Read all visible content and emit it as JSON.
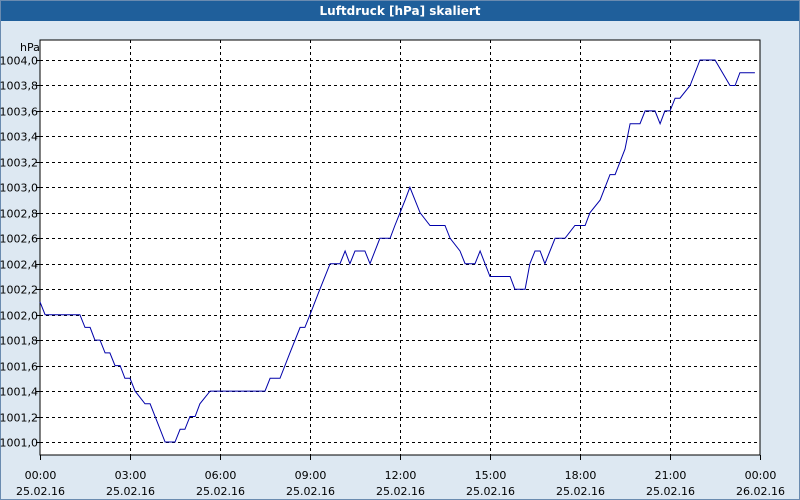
{
  "window": {
    "title": "Luftdruck [hPa] skaliert"
  },
  "chart_data": {
    "type": "line",
    "title": "Luftdruck [hPa] skaliert",
    "ylabel": "hPa",
    "xlabel": "",
    "ylim": [
      1000.9,
      1004.1
    ],
    "xlim": [
      0,
      24
    ],
    "grid": true,
    "x_ticks": [
      {
        "time": "00:00",
        "date": "25.02.16"
      },
      {
        "time": "03:00",
        "date": "25.02.16"
      },
      {
        "time": "06:00",
        "date": "25.02.16"
      },
      {
        "time": "09:00",
        "date": "25.02.16"
      },
      {
        "time": "12:00",
        "date": "25.02.16"
      },
      {
        "time": "15:00",
        "date": "25.02.16"
      },
      {
        "time": "18:00",
        "date": "25.02.16"
      },
      {
        "time": "21:00",
        "date": "25.02.16"
      },
      {
        "time": "00:00",
        "date": "26.02.16"
      }
    ],
    "y_ticks": [
      "1001,0",
      "1001,2",
      "1001,4",
      "1001,6",
      "1001,8",
      "1002,0",
      "1002,2",
      "1002,4",
      "1002,6",
      "1002,8",
      "1003,0",
      "1003,2",
      "1003,4",
      "1003,6",
      "1003,8",
      "1004,0"
    ],
    "series": [
      {
        "color": "#0000aa",
        "x": [
          0,
          0.17,
          1.33,
          1.5,
          1.67,
          1.83,
          2.0,
          2.17,
          2.33,
          2.5,
          2.67,
          2.83,
          3.0,
          3.17,
          3.5,
          3.67,
          4.17,
          4.33,
          4.5,
          4.67,
          4.83,
          5.0,
          5.17,
          5.33,
          5.67,
          6.0,
          7.5,
          7.67,
          8.0,
          8.33,
          8.67,
          8.83,
          9.0,
          9.33,
          9.67,
          10.0,
          10.17,
          10.33,
          10.5,
          10.83,
          11.0,
          11.33,
          11.67,
          11.83,
          12.0,
          12.17,
          12.33,
          12.5,
          12.67,
          13.0,
          13.17,
          13.5,
          13.67,
          14.0,
          14.17,
          14.5,
          14.67,
          15.0,
          15.17,
          15.67,
          15.83,
          16.0,
          16.17,
          16.33,
          16.5,
          16.67,
          16.83,
          17.17,
          17.5,
          17.83,
          18.0,
          18.17,
          18.33,
          18.67,
          19.0,
          19.17,
          19.5,
          19.67,
          20.0,
          20.17,
          20.5,
          20.67,
          20.83,
          21.0,
          21.17,
          21.33,
          21.67,
          22.0,
          22.17,
          22.33,
          22.5,
          23.0,
          23.17,
          23.33,
          23.5,
          23.83
        ],
        "y": [
          1002.1,
          1002.0,
          1002.0,
          1001.9,
          1001.9,
          1001.8,
          1001.8,
          1001.7,
          1001.7,
          1001.6,
          1001.6,
          1001.5,
          1001.5,
          1001.4,
          1001.3,
          1001.3,
          1001.0,
          1001.0,
          1001.0,
          1001.1,
          1001.1,
          1001.2,
          1001.2,
          1001.3,
          1001.4,
          1001.4,
          1001.4,
          1001.5,
          1001.5,
          1001.7,
          1001.9,
          1001.9,
          1002.0,
          1002.2,
          1002.4,
          1002.4,
          1002.5,
          1002.4,
          1002.5,
          1002.5,
          1002.4,
          1002.6,
          1002.6,
          1002.7,
          1002.8,
          1002.9,
          1003.0,
          1002.9,
          1002.8,
          1002.7,
          1002.7,
          1002.7,
          1002.6,
          1002.5,
          1002.4,
          1002.4,
          1002.5,
          1002.3,
          1002.3,
          1002.3,
          1002.2,
          1002.2,
          1002.2,
          1002.4,
          1002.5,
          1002.5,
          1002.4,
          1002.6,
          1002.6,
          1002.7,
          1002.7,
          1002.7,
          1002.8,
          1002.9,
          1003.1,
          1003.1,
          1003.3,
          1003.5,
          1003.5,
          1003.6,
          1003.6,
          1003.5,
          1003.6,
          1003.6,
          1003.7,
          1003.7,
          1003.8,
          1004.0,
          1004.0,
          1004.0,
          1004.0,
          1003.8,
          1003.8,
          1003.9,
          1003.9,
          1003.9
        ]
      }
    ]
  }
}
